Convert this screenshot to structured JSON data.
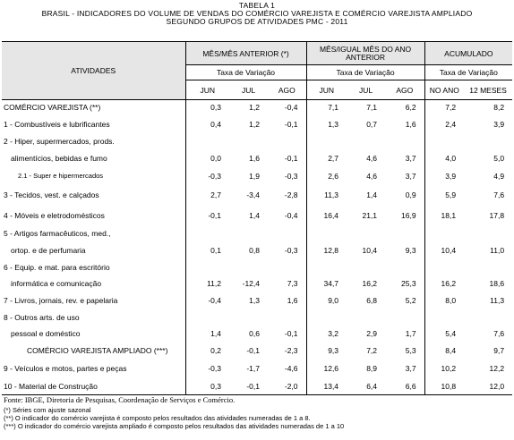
{
  "header": {
    "title": "TABELA 1",
    "subtitle": "BRASIL - INDICADORES DO VOLUME DE VENDAS DO COMÉRCIO VAREJISTA E COMÉRCIO VAREJISTA AMPLIADO",
    "subtitle2": "SEGUNDO GRUPOS DE ATIVIDADES PMC - 2011"
  },
  "table": {
    "col_atividades": "ATIVIDADES",
    "groups": [
      "MÊS/MÊS ANTERIOR (*)",
      "MÊS/IGUAL MÊS DO ANO ANTERIOR",
      "ACUMULADO"
    ],
    "taxa": "Taxa de Variação",
    "months": [
      "JUN",
      "JUL",
      "AGO",
      "JUN",
      "JUL",
      "AGO",
      "NO ANO",
      "12 MESES"
    ],
    "rows": {
      "r01": {
        "label": "COMÉRCIO VAREJISTA (**)",
        "v": [
          "0,3",
          "1,2",
          "-0,4",
          "7,1",
          "7,1",
          "6,2",
          "7,2",
          "8,2"
        ]
      },
      "r02": {
        "label": "1 - Combustíveis e lubrificantes",
        "v": [
          "0,4",
          "1,2",
          "-0,1",
          "1,3",
          "0,7",
          "1,6",
          "2,4",
          "3,9"
        ]
      },
      "r03": {
        "label_a": "2 - Hiper, supermercados, prods.",
        "label_b": "alimentícios, bebidas e fumo",
        "v": [
          "0,0",
          "1,6",
          "-0,1",
          "2,7",
          "4,6",
          "3,7",
          "4,0",
          "5,0"
        ]
      },
      "r04": {
        "label": "2.1 - Super e hipermercados",
        "v": [
          "-0,3",
          "1,9",
          "-0,3",
          "2,6",
          "4,6",
          "3,7",
          "3,9",
          "4,9"
        ]
      },
      "r05": {
        "label": "3 - Tecidos, vest. e calçados",
        "v": [
          "2,7",
          "-3,4",
          "-2,8",
          "11,3",
          "1,4",
          "0,9",
          "5,9",
          "7,6"
        ]
      },
      "r06": {
        "label": "4 - Móveis e eletrodomésticos",
        "v": [
          "-0,1",
          "1,4",
          "-0,4",
          "16,4",
          "21,1",
          "16,9",
          "18,1",
          "17,8"
        ]
      },
      "r07": {
        "label_a": "5 - Artigos farmacêuticos, med.,",
        "label_b": "ortop. e de perfumaria",
        "v": [
          "0,1",
          "0,8",
          "-0,3",
          "12,8",
          "10,4",
          "9,3",
          "10,4",
          "11,0"
        ]
      },
      "r08": {
        "label_a": "6 - Equip. e mat. para escritório",
        "label_b": "informática e comunicação",
        "v": [
          "11,2",
          "-12,4",
          "7,3",
          "34,7",
          "16,2",
          "25,3",
          "16,2",
          "18,6"
        ]
      },
      "r09": {
        "label": "7 - Livros, jornais, rev. e papelaria",
        "v": [
          "-0,4",
          "1,3",
          "1,6",
          "9,0",
          "6,8",
          "5,2",
          "8,0",
          "11,3"
        ]
      },
      "r10": {
        "label_a": "8 - Outros arts. de uso",
        "label_b": "pessoal e doméstico",
        "v": [
          "1,4",
          "0,6",
          "-0,1",
          "3,2",
          "2,9",
          "1,7",
          "5,4",
          "7,6"
        ]
      },
      "r11": {
        "label": "COMÉRCIO VAREJISTA AMPLIADO (***)",
        "v": [
          "0,2",
          "-0,1",
          "-2,3",
          "9,3",
          "7,2",
          "5,3",
          "8,4",
          "9,7"
        ]
      },
      "r12": {
        "label": "9 - Veículos e motos, partes e peças",
        "v": [
          "-0,3",
          "-1,7",
          "-4,6",
          "12,6",
          "8,9",
          "3,7",
          "10,2",
          "12,2"
        ]
      },
      "r13": {
        "label": "10 - Material de Construção",
        "v": [
          "0,3",
          "-0,1",
          "-2,0",
          "13,4",
          "6,4",
          "6,6",
          "10,8",
          "12,0"
        ]
      }
    }
  },
  "footer": {
    "source": "Fonte: IBGE, Diretoria de Pesquisas, Coordenação de Serviços e Comércio.",
    "n1": "(*) Séries com ajuste sazonal",
    "n2": "(**) O indicador do comércio varejista é composto pelos resultados das atividades numeradas de 1 a 8.",
    "n3": "(***) O indicador do comércio varejista ampliado é composto pelos resultados das atividades numeradas de 1 a 10"
  }
}
